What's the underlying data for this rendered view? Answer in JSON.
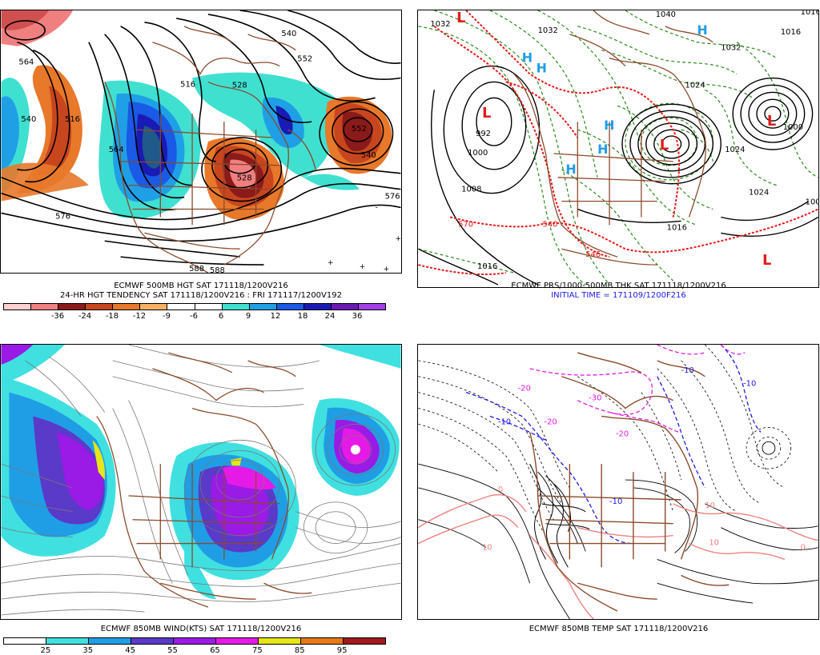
{
  "panels": {
    "top_left": {
      "caption_line1": "ECMWF 500MB HGT SAT 171118/1200V216",
      "caption_line2": "24-HR HGT TENDENCY SAT 171118/1200V216 : FRI 171117/1200V192",
      "contour_labels": [
        "564",
        "540",
        "552",
        "516",
        "528",
        "516",
        "540",
        "564",
        "528",
        "576",
        "576",
        "540",
        "552",
        "588",
        "588"
      ],
      "colorbar": {
        "colors": [
          "#ffd0d0",
          "#f08080",
          "#8b1a1a",
          "#c8461e",
          "#e8782a",
          "#f5b062",
          "#ffffff",
          "#ffffff",
          "#40e0d0",
          "#1fa0e6",
          "#1a5ae6",
          "#1a1ab4",
          "#6a1ab4",
          "#a040e6"
        ],
        "labels": [
          "-36",
          "-24",
          "-18",
          "-12",
          "-9",
          "-6",
          "6",
          "9",
          "12",
          "18",
          "24",
          "36"
        ]
      }
    },
    "top_right": {
      "caption_line1": "ECMWF PRS/1000-500MB THK SAT 171118/1200V216",
      "caption_line2": "INITIAL TIME = 171109/1200F216",
      "isobar_labels": [
        "1032",
        "1040",
        "1032",
        "1016",
        "1032",
        "1024",
        "992",
        "1000",
        "1008",
        "1016",
        "1024",
        "1000",
        "1024",
        "1016",
        "1016",
        "1008"
      ],
      "thickness_labels": [
        "570",
        "540",
        "546"
      ],
      "low_symbol": "L",
      "high_symbol": "H"
    },
    "bottom_left": {
      "caption_line1": "ECMWF 850MB WIND(KTS) SAT 171118/1200V216",
      "colorbar": {
        "colors": [
          "#ffffff",
          "#40e0e0",
          "#1f9ee6",
          "#5a3ac8",
          "#9a1ae6",
          "#e61ae6",
          "#e6e61a",
          "#e67a1a",
          "#a01a1a"
        ],
        "labels": [
          "25",
          "35",
          "45",
          "55",
          "65",
          "75",
          "85",
          "95"
        ]
      }
    },
    "bottom_right": {
      "caption_line1": "ECMWF 850MB TEMP SAT 171118/1200V216",
      "temp_labels": [
        "-20",
        "-10",
        "-10",
        "-20",
        "-30",
        "-20",
        "-10",
        "-10",
        "0",
        "10",
        "10",
        "10",
        "0"
      ]
    }
  },
  "colors": {
    "coast": "#8b4a2b",
    "contour": "#000000",
    "thickness": "#e61a1a",
    "pressure_dash": "#2a8a1a"
  }
}
